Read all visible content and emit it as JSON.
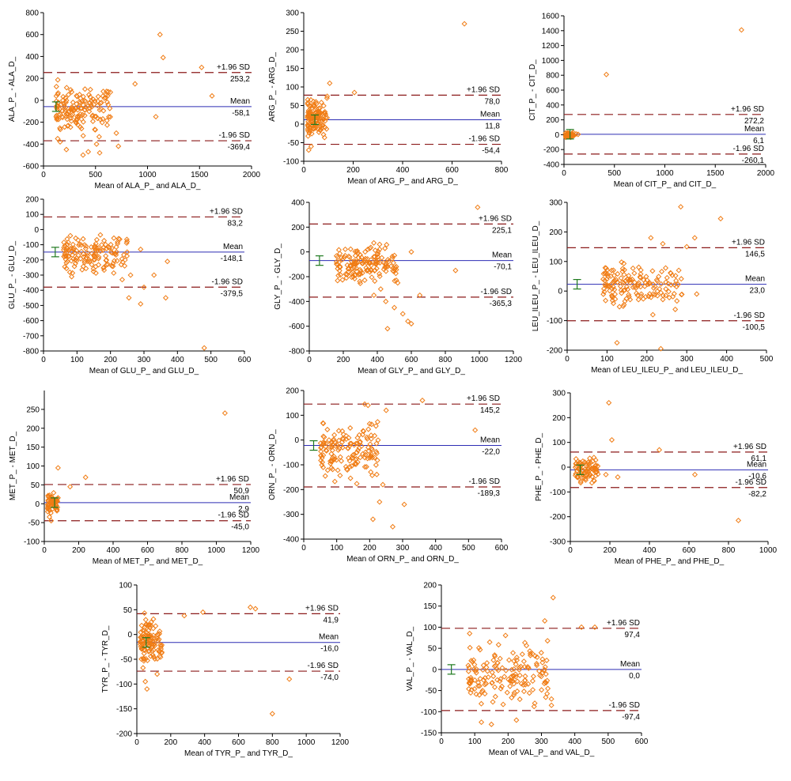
{
  "chart_data": [
    {
      "type": "scatter",
      "xlabel": "Mean of ALA_P_ and ALA_D_",
      "ylabel": "ALA_P_ - ALA_D_",
      "xlim": [
        0,
        2000
      ],
      "ylim": [
        -600,
        800
      ],
      "xticks": [
        0,
        500,
        1000,
        1500,
        2000
      ],
      "yticks": [
        -600,
        -400,
        -200,
        0,
        200,
        400,
        600,
        800
      ],
      "ytick_labels": [
        "-600",
        "-400",
        "-200",
        "0",
        "200",
        "400",
        "600",
        "800"
      ],
      "mean": -58.1,
      "upper": 253.2,
      "lower": -369.4,
      "mean_label": "-58,1",
      "upper_label": "253,2",
      "lower_label": "-369,4",
      "upper_name": "+1.96 SD",
      "mean_name": "Mean",
      "lower_name": "-1.96 SD",
      "ci_x": 120,
      "points": [
        [
          1120,
          600
        ],
        [
          1150,
          390
        ],
        [
          1520,
          300
        ],
        [
          1620,
          40
        ],
        [
          1080,
          -150
        ],
        [
          880,
          150
        ],
        [
          700,
          -300
        ],
        [
          720,
          -420
        ],
        [
          510,
          -400
        ],
        [
          540,
          -480
        ],
        [
          430,
          -470
        ],
        [
          380,
          -500
        ],
        [
          160,
          -380
        ],
        [
          220,
          -450
        ]
      ],
      "cluster": {
        "cx": [
          120,
          650
        ],
        "cy": [
          -380,
          200
        ],
        "n": 150,
        "seed": 11
      }
    },
    {
      "type": "scatter",
      "xlabel": "Mean of ARG_P_ and ARG_D_",
      "ylabel": "ARG_P_ - ARG_D_",
      "xlim": [
        0,
        800
      ],
      "ylim": [
        -100,
        300
      ],
      "xticks": [
        0,
        200,
        400,
        600,
        800
      ],
      "yticks": [
        -100,
        -50,
        0,
        50,
        100,
        150,
        200,
        250,
        300
      ],
      "ytick_labels": [
        "-100",
        "-50",
        "0",
        "50",
        "100",
        "150",
        "200",
        "250",
        "300"
      ],
      "mean": 11.8,
      "upper": 78.0,
      "lower": -54.4,
      "mean_label": "11,8",
      "upper_label": "78,0",
      "lower_label": "-54,4",
      "upper_name": "+1.96 SD",
      "mean_name": "Mean",
      "lower_name": "-1.96 SD",
      "ci_x": 45,
      "points": [
        [
          650,
          270
        ],
        [
          205,
          85
        ],
        [
          105,
          110
        ],
        [
          95,
          75
        ],
        [
          20,
          -70
        ],
        [
          30,
          -60
        ]
      ],
      "cluster": {
        "cx": [
          15,
          95
        ],
        "cy": [
          -55,
          90
        ],
        "n": 120,
        "seed": 23
      }
    },
    {
      "type": "scatter",
      "xlabel": "Mean of CIT_P_ and CIT_D_",
      "ylabel": "CIT_P_ - CIT_D_",
      "xlim": [
        0,
        2000
      ],
      "ylim": [
        -400,
        1600
      ],
      "xticks": [
        0,
        500,
        1000,
        1500,
        2000
      ],
      "yticks": [
        -400,
        -200,
        0,
        200,
        400,
        600,
        800,
        1000,
        1200,
        1400,
        1600
      ],
      "ytick_labels": [
        "-400",
        "-200",
        "0",
        "200",
        "400",
        "600",
        "800",
        "1000",
        "1200",
        "1400",
        "1600"
      ],
      "mean": 6.1,
      "upper": 272.2,
      "lower": -260.1,
      "mean_label": "6,1",
      "upper_label": "272,2",
      "lower_label": "-260,1",
      "upper_name": "+1.96 SD",
      "mean_name": "Mean",
      "lower_name": "-1.96 SD",
      "ci_x": 60,
      "points": [
        [
          1760,
          1410
        ],
        [
          420,
          810
        ],
        [
          120,
          10
        ],
        [
          100,
          -10
        ],
        [
          80,
          20
        ],
        [
          60,
          -30
        ],
        [
          140,
          5
        ]
      ],
      "cluster": {
        "cx": [
          15,
          110
        ],
        "cy": [
          -50,
          40
        ],
        "n": 40,
        "seed": 37
      }
    },
    {
      "type": "scatter",
      "xlabel": "Mean of GLU_P_ and GLU_D_",
      "ylabel": "GLU_P_ - GLU_D_",
      "xlim": [
        0,
        600
      ],
      "ylim": [
        -800,
        200
      ],
      "xticks": [
        0,
        100,
        200,
        300,
        400,
        500,
        600
      ],
      "yticks": [
        -800,
        -700,
        -600,
        -500,
        -400,
        -300,
        -200,
        -100,
        0,
        100,
        200
      ],
      "ytick_labels": [
        "-800",
        "-700",
        "-600",
        "-500",
        "-400",
        "-300",
        "-200",
        "-100",
        "0",
        "100",
        "200"
      ],
      "mean": -148.1,
      "upper": 83.2,
      "lower": -379.5,
      "mean_label": "-148,1",
      "upper_label": "83,2",
      "lower_label": "-379,5",
      "upper_name": "+1.96 SD",
      "mean_name": "Mean",
      "lower_name": "-1.96 SD",
      "ci_x": 35,
      "points": [
        [
          480,
          -780
        ],
        [
          290,
          -490
        ],
        [
          330,
          -300
        ],
        [
          370,
          -210
        ],
        [
          365,
          -450
        ],
        [
          300,
          -380
        ],
        [
          255,
          -450
        ],
        [
          235,
          -330
        ],
        [
          290,
          -130
        ],
        [
          150,
          -200
        ],
        [
          120,
          -180
        ],
        [
          260,
          -300
        ]
      ],
      "cluster": {
        "cx": [
          60,
          250
        ],
        "cy": [
          -350,
          40
        ],
        "n": 140,
        "seed": 53
      }
    },
    {
      "type": "scatter",
      "xlabel": "Mean of GLY_P_ and GLY_D_",
      "ylabel": "GLY_P_ - GLY_D_",
      "xlim": [
        0,
        1200
      ],
      "ylim": [
        -800,
        400
      ],
      "xticks": [
        0,
        200,
        400,
        600,
        800,
        1000,
        1200
      ],
      "yticks": [
        -800,
        -600,
        -400,
        -200,
        0,
        200,
        400
      ],
      "ytick_labels": [
        "-800",
        "-600",
        "-400",
        "-200",
        "0",
        "200",
        "400"
      ],
      "mean": -70.1,
      "upper": 225.1,
      "lower": -365.3,
      "mean_label": "-70,1",
      "upper_label": "225,1",
      "lower_label": "-365,3",
      "upper_name": "+1.96 SD",
      "mean_name": "Mean",
      "lower_name": "-1.96 SD",
      "ci_x": 60,
      "points": [
        [
          990,
          360
        ],
        [
          860,
          -150
        ],
        [
          550,
          -500
        ],
        [
          600,
          -580
        ],
        [
          460,
          -620
        ],
        [
          450,
          -400
        ],
        [
          600,
          0
        ],
        [
          520,
          -250
        ],
        [
          500,
          -450
        ],
        [
          380,
          -350
        ],
        [
          650,
          -350
        ],
        [
          580,
          -560
        ],
        [
          420,
          -300
        ]
      ],
      "cluster": {
        "cx": [
          160,
          520
        ],
        "cy": [
          -300,
          100
        ],
        "n": 150,
        "seed": 71
      }
    },
    {
      "type": "scatter",
      "xlabel": "Mean of LEU_ILEU_P_ and LEU_ILEU_D_",
      "ylabel": "LEU_ILEU_P_ - LEU_ILEU_D_",
      "xlim": [
        0,
        500
      ],
      "ylim": [
        -200,
        300
      ],
      "xticks": [
        0,
        100,
        200,
        300,
        400,
        500
      ],
      "yticks": [
        -200,
        -100,
        0,
        100,
        200,
        300
      ],
      "ytick_labels": [
        "-200",
        "-100",
        "0",
        "100",
        "200",
        "300"
      ],
      "mean": 23.0,
      "upper": 146.5,
      "lower": -100.5,
      "mean_label": "23,0",
      "upper_label": "146,5",
      "lower_label": "-100,5",
      "upper_name": "+1.96 SD",
      "mean_name": "Mean",
      "lower_name": "-1.96 SD",
      "ci_x": 25,
      "points": [
        [
          285,
          285
        ],
        [
          385,
          245
        ],
        [
          210,
          180
        ],
        [
          320,
          180
        ],
        [
          240,
          160
        ],
        [
          125,
          -175
        ],
        [
          235,
          -195
        ],
        [
          325,
          -10
        ],
        [
          280,
          70
        ],
        [
          260,
          60
        ],
        [
          300,
          150
        ],
        [
          215,
          -80
        ]
      ],
      "cluster": {
        "cx": [
          90,
          290
        ],
        "cy": [
          -80,
          120
        ],
        "n": 150,
        "seed": 89
      }
    },
    {
      "type": "scatter",
      "xlabel": "Mean of MET_P_ and MET_D_",
      "ylabel": "MET_P_ - MET_D_",
      "xlim": [
        0,
        1200
      ],
      "ylim": [
        -100,
        300
      ],
      "xticks": [
        0,
        200,
        400,
        600,
        800,
        1000,
        1200
      ],
      "yticks": [
        -100,
        -50,
        0,
        50,
        100,
        150,
        200,
        250
      ],
      "ytick_labels": [
        "-100",
        "-50",
        "0",
        "50",
        "100",
        "150",
        "200",
        "250"
      ],
      "mean": 2.9,
      "upper": 50.9,
      "lower": -45.0,
      "mean_label": "2,9",
      "upper_label": "50,9",
      "lower_label": "-45,0",
      "upper_name": "+1.96 SD",
      "mean_name": "Mean",
      "lower_name": "-1.96 SD",
      "ci_x": 60,
      "points": [
        [
          1050,
          240
        ],
        [
          80,
          95
        ],
        [
          240,
          70
        ],
        [
          150,
          45
        ],
        [
          40,
          -45
        ],
        [
          30,
          -35
        ]
      ],
      "cluster": {
        "cx": [
          20,
          80
        ],
        "cy": [
          -30,
          35
        ],
        "n": 60,
        "seed": 97
      }
    },
    {
      "type": "scatter",
      "xlabel": "Mean of ORN_P_ and ORN_D_",
      "ylabel": "ORN_P_ - ORN_D_",
      "xlim": [
        0,
        600
      ],
      "ylim": [
        -400,
        200
      ],
      "xticks": [
        0,
        100,
        200,
        300,
        400,
        500,
        600
      ],
      "yticks": [
        -400,
        -300,
        -200,
        -100,
        0,
        100,
        200
      ],
      "ytick_labels": [
        "-400",
        "-300",
        "-200",
        "-100",
        "0",
        "100",
        "200"
      ],
      "mean": -22.0,
      "upper": 145.2,
      "lower": -189.3,
      "mean_label": "-22,0",
      "upper_label": "145,2",
      "lower_label": "-189,3",
      "upper_name": "+1.96 SD",
      "mean_name": "Mean",
      "lower_name": "-1.96 SD",
      "ci_x": 30,
      "points": [
        [
          360,
          160
        ],
        [
          520,
          40
        ],
        [
          270,
          -350
        ],
        [
          305,
          -260
        ],
        [
          210,
          -320
        ],
        [
          230,
          -250
        ],
        [
          240,
          -180
        ],
        [
          185,
          145
        ],
        [
          195,
          140
        ],
        [
          250,
          120
        ]
      ],
      "cluster": {
        "cx": [
          50,
          230
        ],
        "cy": [
          -210,
          110
        ],
        "n": 150,
        "seed": 103
      }
    },
    {
      "type": "scatter",
      "xlabel": "Mean of PHE_P_ and PHE_D_",
      "ylabel": "PHE_P_ - PHE_D_",
      "xlim": [
        0,
        1000
      ],
      "ylim": [
        -300,
        300
      ],
      "xticks": [
        0,
        200,
        400,
        600,
        800,
        1000
      ],
      "yticks": [
        -300,
        -200,
        -100,
        0,
        100,
        200,
        300
      ],
      "ytick_labels": [
        "-300",
        "-200",
        "-100",
        "0",
        "100",
        "200",
        "300"
      ],
      "mean": -10.6,
      "upper": 61.1,
      "lower": -82.2,
      "mean_label": "-10,6",
      "upper_label": "61,1",
      "lower_label": "-82,2",
      "upper_name": "+1.96 SD",
      "mean_name": "Mean",
      "lower_name": "-1.96 SD",
      "ci_x": 50,
      "points": [
        [
          850,
          -215
        ],
        [
          195,
          260
        ],
        [
          210,
          110
        ],
        [
          450,
          70
        ],
        [
          630,
          -30
        ],
        [
          240,
          -40
        ],
        [
          180,
          -30
        ]
      ],
      "cluster": {
        "cx": [
          25,
          140
        ],
        "cy": [
          -75,
          55
        ],
        "n": 80,
        "seed": 131
      }
    },
    {
      "type": "scatter",
      "xlabel": "Mean of TYR_P_ and TYR_D_",
      "ylabel": "TYR_P_ - TYR_D_",
      "xlim": [
        0,
        1200
      ],
      "ylim": [
        -200,
        100
      ],
      "xticks": [
        0,
        200,
        400,
        600,
        800,
        1000,
        1200
      ],
      "yticks": [
        -200,
        -150,
        -100,
        -50,
        0,
        50,
        100
      ],
      "ytick_labels": [
        "-200",
        "-150",
        "-100",
        "-50",
        "0",
        "50",
        "100"
      ],
      "mean": -16.0,
      "upper": 41.9,
      "lower": -74.0,
      "mean_label": "-16,0",
      "upper_label": "41,9",
      "lower_label": "-74,0",
      "upper_name": "+1.96 SD",
      "mean_name": "Mean",
      "lower_name": "-1.96 SD",
      "ci_x": 55,
      "points": [
        [
          800,
          -160
        ],
        [
          900,
          -90
        ],
        [
          670,
          55
        ],
        [
          700,
          52
        ],
        [
          390,
          45
        ],
        [
          280,
          38
        ],
        [
          60,
          -110
        ],
        [
          50,
          -95
        ],
        [
          120,
          -80
        ]
      ],
      "cluster": {
        "cx": [
          20,
          150
        ],
        "cy": [
          -75,
          45
        ],
        "n": 110,
        "seed": 149
      }
    },
    {
      "type": "scatter",
      "xlabel": "Mean of VAL_P_ and VAL_D_",
      "ylabel": "VAL_P_ - VAL_D_",
      "xlim": [
        0,
        600
      ],
      "ylim": [
        -150,
        200
      ],
      "xticks": [
        0,
        100,
        200,
        300,
        400,
        500,
        600
      ],
      "yticks": [
        -150,
        -100,
        -50,
        0,
        50,
        100,
        150,
        200
      ],
      "ytick_labels": [
        "-150",
        "-100",
        "-50",
        "0",
        "50",
        "100",
        "150",
        "200"
      ],
      "mean": 0.0,
      "upper": 97.4,
      "lower": -97.4,
      "mean_label": "0,0",
      "upper_label": "97,4",
      "lower_label": "-97,4",
      "upper_name": "+1.96 SD",
      "mean_name": "Mean",
      "lower_name": "-1.96 SD",
      "ci_x": 30,
      "points": [
        [
          335,
          170
        ],
        [
          310,
          115
        ],
        [
          420,
          100
        ],
        [
          460,
          100
        ],
        [
          330,
          -70
        ],
        [
          330,
          -85
        ],
        [
          280,
          -80
        ],
        [
          120,
          -125
        ],
        [
          150,
          -130
        ],
        [
          225,
          -120
        ]
      ],
      "cluster": {
        "cx": [
          80,
          320
        ],
        "cy": [
          -110,
          95
        ],
        "n": 160,
        "seed": 173
      }
    }
  ]
}
